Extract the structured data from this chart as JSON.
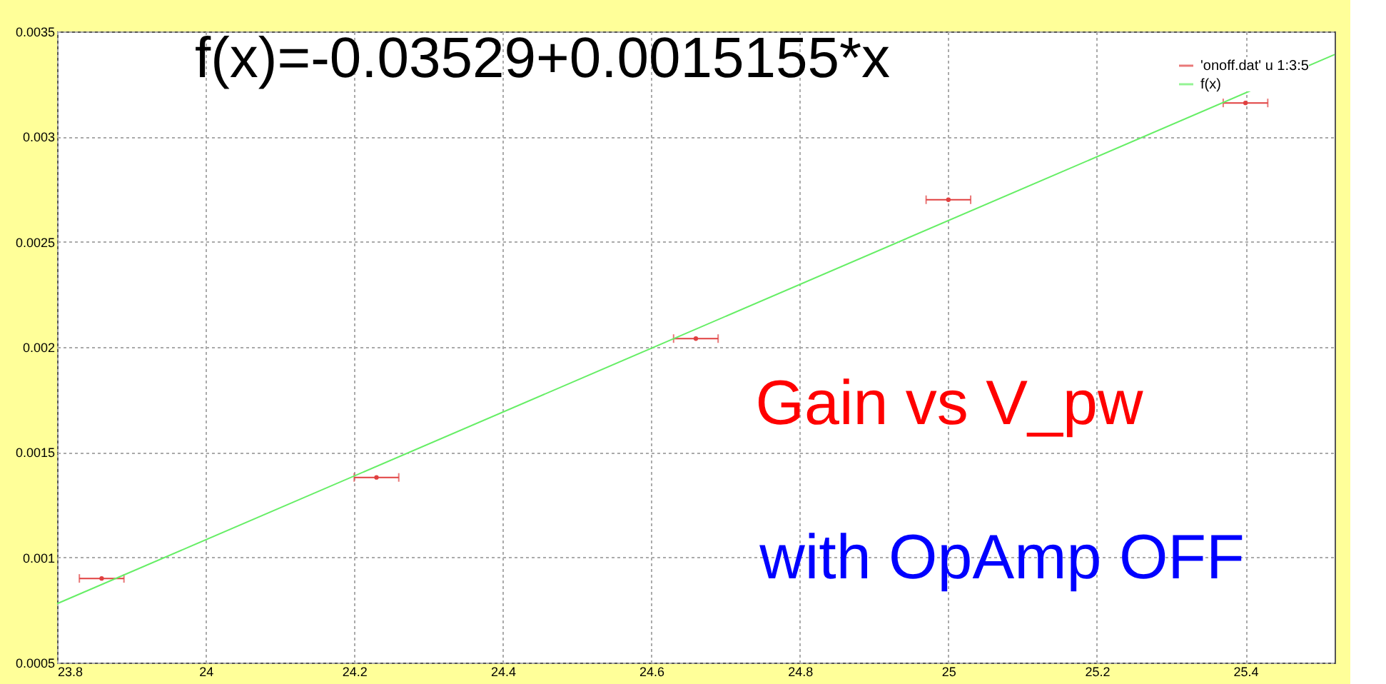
{
  "chart_data": {
    "type": "scatter",
    "xlim": [
      23.8,
      25.52
    ],
    "ylim": [
      0.0005,
      0.0035
    ],
    "xticks": [
      23.8,
      24,
      24.2,
      24.4,
      24.6,
      24.8,
      25,
      25.2,
      25.4
    ],
    "yticks": [
      0.0005,
      0.001,
      0.0015,
      0.002,
      0.0025,
      0.003,
      0.0035
    ],
    "grid": true,
    "legend": "top right",
    "line_style": "solid",
    "annotations": [
      "f(x)=-0.03529+0.0015155*x",
      "Gain vs V_pw",
      "with OpAmp OFF"
    ],
    "series": [
      {
        "name": "'onoff.dat' u 1:3:5",
        "color": "#e04040",
        "x": [
          23.86,
          24.23,
          24.66,
          25.0,
          25.4
        ],
        "values": [
          0.0009,
          0.00138,
          0.00204,
          0.0027,
          0.00316
        ],
        "xerrors": [
          0.03,
          0.03,
          0.03,
          0.03,
          0.03
        ]
      },
      {
        "name": "f(x)",
        "color": "#66ee66",
        "type": "line",
        "x": [
          23.8,
          25.52
        ],
        "values": [
          0.00078,
          0.00339
        ]
      }
    ]
  }
}
